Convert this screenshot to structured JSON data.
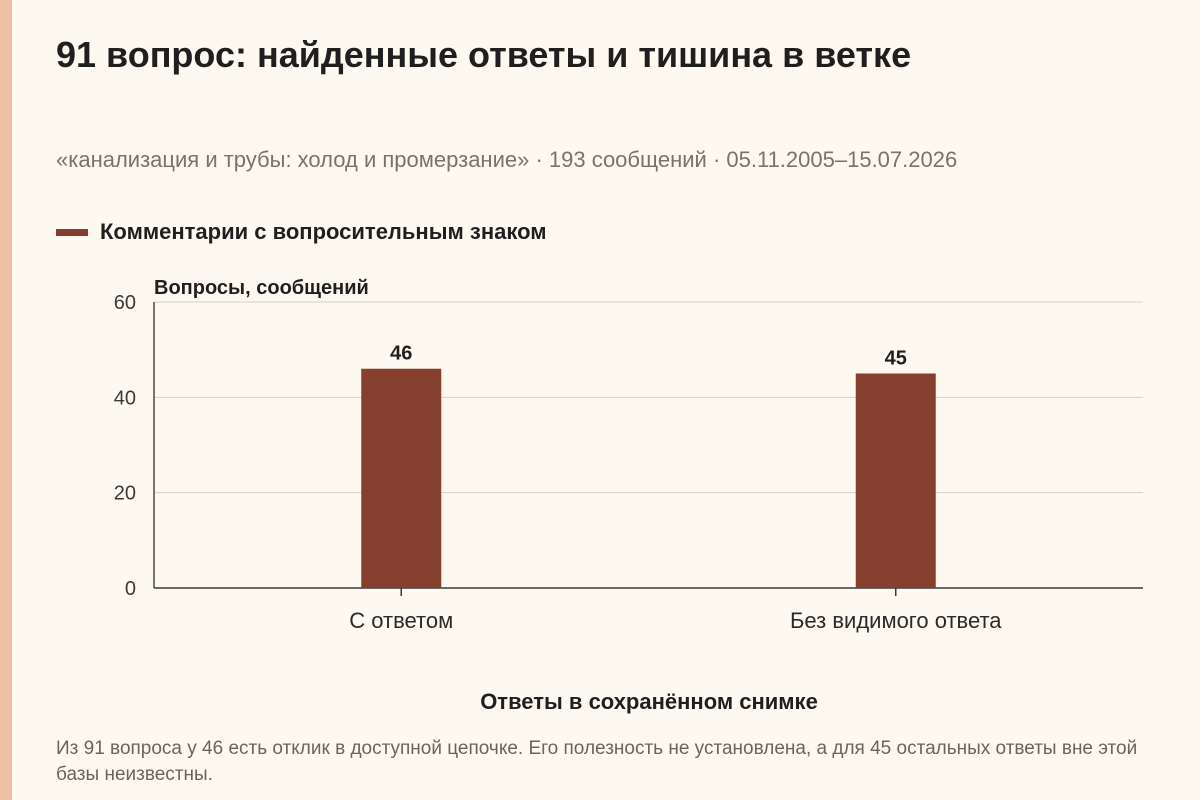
{
  "title": "91 вопрос: найденные ответы и тишина в ветке",
  "subtitle": "«канализация и трубы: холод и промерзание» · 193 сообщений · 05.11.2005–15.07.2026",
  "footnote": "Из 91 вопроса у 46 есть отклик в доступной цепочке. Его полезность не установлена, а для 45 остальных ответы вне этой базы неизвестны.",
  "colors": {
    "bar": "#853f2f",
    "accent": "#eec1a6",
    "background": "#fdf9f0"
  },
  "chart_data": {
    "type": "bar",
    "categories": [
      "С ответом",
      "Без видимого ответа"
    ],
    "series": [
      {
        "name": "Комментарии с вопросительным знаком",
        "values": [
          46,
          45
        ]
      }
    ],
    "xlabel": "Ответы в сохранённом снимке",
    "ylabel": "Вопросы, сообщений",
    "ylim": [
      0,
      60
    ],
    "yticks": [
      0,
      20,
      40,
      60
    ],
    "grid": true,
    "legend": "top-left",
    "data_labels": true
  }
}
